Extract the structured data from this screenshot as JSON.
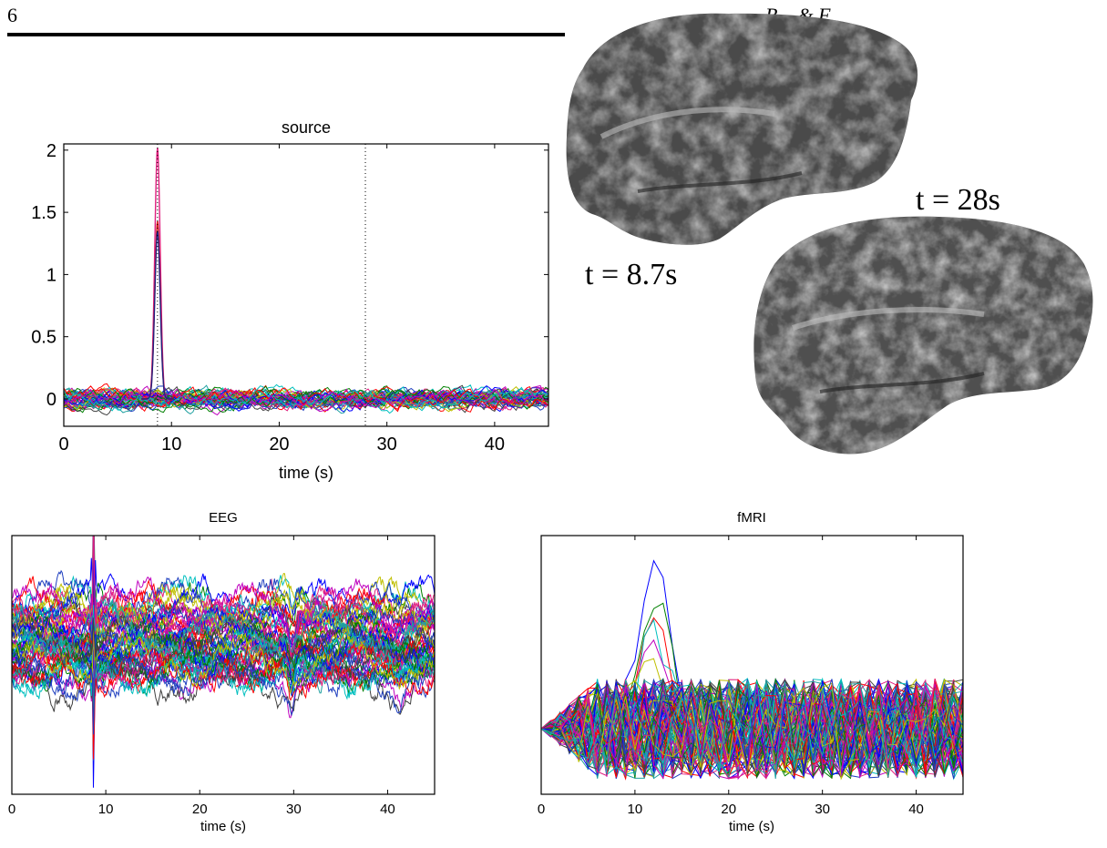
{
  "page": {
    "page_number": "6",
    "running_head": "B... & F..."
  },
  "brain_labels": {
    "top": "t = 8.7s",
    "bottom": "t = 28s"
  },
  "chart_data": [
    {
      "id": "source",
      "type": "line",
      "title": "source",
      "xlabel": "time (s)",
      "ylabel": "",
      "xlim": [
        0,
        45
      ],
      "ylim": [
        -0.22,
        2.05
      ],
      "xticks": [
        0,
        10,
        20,
        30,
        40
      ],
      "yticks": [
        0,
        0.5,
        1,
        1.5,
        2
      ],
      "ytick_labels": [
        "0",
        "0.5",
        "1",
        "1.5",
        "2"
      ],
      "vlines_dotted": [
        8.7,
        28
      ],
      "peaks": [
        {
          "center": 8.7,
          "height": 2.02,
          "color": "#e0207f"
        },
        {
          "center": 8.7,
          "height": 1.43,
          "color": "#d42020"
        },
        {
          "center": 8.7,
          "height": 1.35,
          "color": "#202080"
        }
      ],
      "noise_series_count": 45,
      "noise_amplitude": 0.08
    },
    {
      "id": "eeg",
      "type": "line",
      "title": "EEG",
      "xlabel": "time (s)",
      "ylabel": "",
      "xlim": [
        0,
        45
      ],
      "xticks": [
        0,
        10,
        20,
        30,
        40
      ],
      "events": [
        8.7,
        29.8,
        41
      ],
      "series_count": 60
    },
    {
      "id": "fmri",
      "type": "line",
      "title": "fMRI",
      "xlabel": "time (s)",
      "ylabel": "",
      "xlim": [
        0,
        45
      ],
      "xticks": [
        0,
        10,
        20,
        30,
        40
      ],
      "response_peak_time": 12,
      "series_count": 120
    }
  ]
}
